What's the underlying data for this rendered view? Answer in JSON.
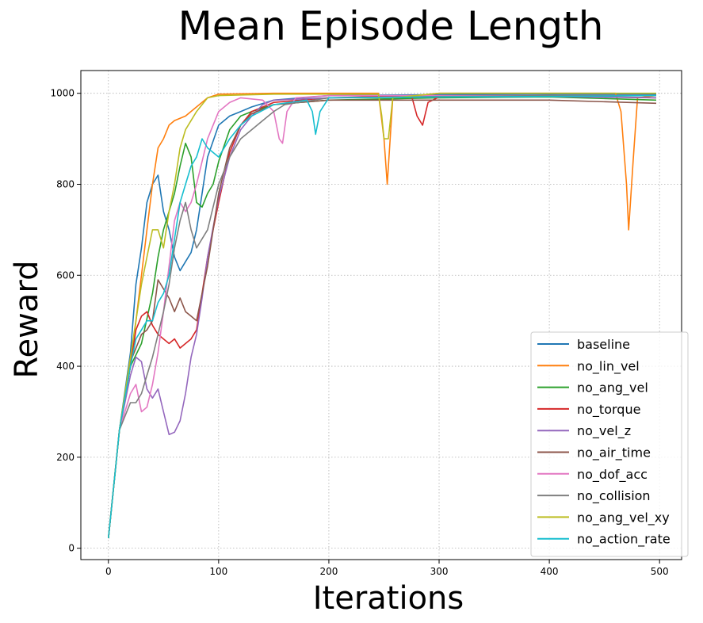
{
  "chart_data": {
    "type": "line",
    "title": "Mean Episode Length",
    "xlabel": "Iterations",
    "ylabel": "Reward",
    "xlim": [
      -25,
      520
    ],
    "ylim": [
      -25,
      1050
    ],
    "xticks": [
      0,
      100,
      200,
      300,
      400,
      500
    ],
    "yticks": [
      0,
      200,
      400,
      600,
      800,
      1000
    ],
    "grid": true,
    "grid_style": "dotted",
    "legend_position": "lower-right",
    "series": [
      {
        "name": "baseline",
        "color": "#1f77b4",
        "points": [
          [
            0,
            22
          ],
          [
            10,
            260
          ],
          [
            20,
            430
          ],
          [
            25,
            580
          ],
          [
            30,
            660
          ],
          [
            35,
            760
          ],
          [
            40,
            800
          ],
          [
            45,
            820
          ],
          [
            50,
            740
          ],
          [
            55,
            700
          ],
          [
            60,
            640
          ],
          [
            65,
            610
          ],
          [
            70,
            630
          ],
          [
            75,
            650
          ],
          [
            80,
            700
          ],
          [
            85,
            780
          ],
          [
            90,
            860
          ],
          [
            100,
            930
          ],
          [
            110,
            950
          ],
          [
            120,
            960
          ],
          [
            130,
            970
          ],
          [
            150,
            985
          ],
          [
            200,
            995
          ],
          [
            300,
            997
          ],
          [
            400,
            998
          ],
          [
            497,
            998
          ]
        ]
      },
      {
        "name": "no_lin_vel",
        "color": "#ff7f0e",
        "points": [
          [
            0,
            22
          ],
          [
            10,
            260
          ],
          [
            20,
            400
          ],
          [
            30,
            600
          ],
          [
            35,
            700
          ],
          [
            40,
            800
          ],
          [
            45,
            880
          ],
          [
            50,
            900
          ],
          [
            55,
            930
          ],
          [
            60,
            940
          ],
          [
            70,
            950
          ],
          [
            80,
            970
          ],
          [
            90,
            990
          ],
          [
            100,
            998
          ],
          [
            150,
            1000
          ],
          [
            245,
            1000
          ],
          [
            250,
            900
          ],
          [
            253,
            800
          ],
          [
            258,
            990
          ],
          [
            300,
            1000
          ],
          [
            460,
            1000
          ],
          [
            465,
            960
          ],
          [
            470,
            800
          ],
          [
            472,
            700
          ],
          [
            476,
            850
          ],
          [
            480,
            990
          ],
          [
            497,
            995
          ]
        ]
      },
      {
        "name": "no_ang_vel",
        "color": "#2ca02c",
        "points": [
          [
            0,
            22
          ],
          [
            10,
            260
          ],
          [
            20,
            400
          ],
          [
            30,
            450
          ],
          [
            40,
            560
          ],
          [
            45,
            640
          ],
          [
            50,
            700
          ],
          [
            55,
            740
          ],
          [
            60,
            780
          ],
          [
            65,
            840
          ],
          [
            70,
            890
          ],
          [
            75,
            860
          ],
          [
            80,
            760
          ],
          [
            85,
            750
          ],
          [
            90,
            780
          ],
          [
            95,
            800
          ],
          [
            100,
            850
          ],
          [
            110,
            920
          ],
          [
            120,
            950
          ],
          [
            130,
            960
          ],
          [
            150,
            975
          ],
          [
            200,
            985
          ],
          [
            300,
            990
          ],
          [
            400,
            992
          ],
          [
            497,
            985
          ]
        ]
      },
      {
        "name": "no_torque",
        "color": "#d62728",
        "points": [
          [
            0,
            22
          ],
          [
            10,
            260
          ],
          [
            20,
            400
          ],
          [
            25,
            480
          ],
          [
            30,
            510
          ],
          [
            35,
            520
          ],
          [
            40,
            490
          ],
          [
            45,
            470
          ],
          [
            50,
            460
          ],
          [
            55,
            450
          ],
          [
            60,
            460
          ],
          [
            65,
            440
          ],
          [
            70,
            450
          ],
          [
            75,
            460
          ],
          [
            80,
            480
          ],
          [
            85,
            560
          ],
          [
            90,
            640
          ],
          [
            100,
            760
          ],
          [
            110,
            870
          ],
          [
            120,
            930
          ],
          [
            130,
            960
          ],
          [
            150,
            980
          ],
          [
            200,
            990
          ],
          [
            275,
            995
          ],
          [
            280,
            950
          ],
          [
            285,
            930
          ],
          [
            290,
            980
          ],
          [
            300,
            992
          ],
          [
            400,
            995
          ],
          [
            497,
            990
          ]
        ]
      },
      {
        "name": "no_vel_z",
        "color": "#9467bd",
        "points": [
          [
            0,
            22
          ],
          [
            10,
            260
          ],
          [
            20,
            380
          ],
          [
            25,
            420
          ],
          [
            30,
            410
          ],
          [
            35,
            350
          ],
          [
            40,
            330
          ],
          [
            45,
            350
          ],
          [
            50,
            300
          ],
          [
            55,
            250
          ],
          [
            60,
            255
          ],
          [
            65,
            280
          ],
          [
            70,
            340
          ],
          [
            75,
            420
          ],
          [
            80,
            470
          ],
          [
            85,
            550
          ],
          [
            90,
            640
          ],
          [
            100,
            770
          ],
          [
            110,
            860
          ],
          [
            120,
            920
          ],
          [
            130,
            950
          ],
          [
            140,
            975
          ],
          [
            150,
            985
          ],
          [
            200,
            990
          ],
          [
            300,
            992
          ],
          [
            400,
            993
          ],
          [
            497,
            990
          ]
        ]
      },
      {
        "name": "no_air_time",
        "color": "#8c564b",
        "points": [
          [
            0,
            22
          ],
          [
            10,
            260
          ],
          [
            20,
            410
          ],
          [
            30,
            470
          ],
          [
            35,
            480
          ],
          [
            40,
            500
          ],
          [
            45,
            590
          ],
          [
            50,
            570
          ],
          [
            55,
            550
          ],
          [
            60,
            520
          ],
          [
            65,
            550
          ],
          [
            70,
            520
          ],
          [
            75,
            510
          ],
          [
            80,
            500
          ],
          [
            90,
            620
          ],
          [
            100,
            780
          ],
          [
            110,
            880
          ],
          [
            120,
            930
          ],
          [
            130,
            955
          ],
          [
            150,
            975
          ],
          [
            200,
            985
          ],
          [
            300,
            985
          ],
          [
            400,
            985
          ],
          [
            497,
            978
          ]
        ]
      },
      {
        "name": "no_dof_acc",
        "color": "#e377c2",
        "points": [
          [
            0,
            22
          ],
          [
            10,
            260
          ],
          [
            20,
            340
          ],
          [
            25,
            360
          ],
          [
            30,
            300
          ],
          [
            35,
            310
          ],
          [
            40,
            360
          ],
          [
            45,
            430
          ],
          [
            50,
            520
          ],
          [
            55,
            620
          ],
          [
            60,
            720
          ],
          [
            65,
            760
          ],
          [
            70,
            740
          ],
          [
            75,
            760
          ],
          [
            80,
            800
          ],
          [
            90,
            900
          ],
          [
            100,
            960
          ],
          [
            110,
            980
          ],
          [
            120,
            990
          ],
          [
            140,
            985
          ],
          [
            150,
            960
          ],
          [
            155,
            900
          ],
          [
            158,
            890
          ],
          [
            162,
            960
          ],
          [
            170,
            990
          ],
          [
            200,
            995
          ],
          [
            300,
            995
          ],
          [
            400,
            995
          ],
          [
            497,
            995
          ]
        ]
      },
      {
        "name": "no_collision",
        "color": "#7f7f7f",
        "points": [
          [
            0,
            22
          ],
          [
            10,
            260
          ],
          [
            20,
            320
          ],
          [
            25,
            320
          ],
          [
            30,
            340
          ],
          [
            35,
            380
          ],
          [
            40,
            420
          ],
          [
            45,
            470
          ],
          [
            50,
            520
          ],
          [
            55,
            580
          ],
          [
            60,
            660
          ],
          [
            65,
            720
          ],
          [
            70,
            760
          ],
          [
            75,
            700
          ],
          [
            80,
            660
          ],
          [
            90,
            700
          ],
          [
            100,
            800
          ],
          [
            110,
            860
          ],
          [
            120,
            900
          ],
          [
            130,
            920
          ],
          [
            140,
            940
          ],
          [
            150,
            960
          ],
          [
            160,
            975
          ],
          [
            200,
            990
          ],
          [
            300,
            993
          ],
          [
            400,
            995
          ],
          [
            497,
            995
          ]
        ]
      },
      {
        "name": "no_ang_vel_xy",
        "color": "#bcbd22",
        "points": [
          [
            0,
            22
          ],
          [
            10,
            260
          ],
          [
            20,
            420
          ],
          [
            25,
            500
          ],
          [
            30,
            580
          ],
          [
            35,
            640
          ],
          [
            40,
            700
          ],
          [
            45,
            700
          ],
          [
            50,
            660
          ],
          [
            55,
            740
          ],
          [
            60,
            800
          ],
          [
            65,
            880
          ],
          [
            70,
            920
          ],
          [
            80,
            960
          ],
          [
            90,
            990
          ],
          [
            100,
            995
          ],
          [
            150,
            998
          ],
          [
            245,
            998
          ],
          [
            248,
            950
          ],
          [
            250,
            900
          ],
          [
            254,
            900
          ],
          [
            258,
            990
          ],
          [
            300,
            1000
          ],
          [
            400,
            1000
          ],
          [
            497,
            1000
          ]
        ]
      },
      {
        "name": "no_action_rate",
        "color": "#17becf",
        "points": [
          [
            0,
            22
          ],
          [
            10,
            260
          ],
          [
            20,
            400
          ],
          [
            25,
            460
          ],
          [
            30,
            480
          ],
          [
            35,
            500
          ],
          [
            40,
            500
          ],
          [
            45,
            540
          ],
          [
            50,
            560
          ],
          [
            55,
            600
          ],
          [
            60,
            680
          ],
          [
            65,
            760
          ],
          [
            70,
            800
          ],
          [
            75,
            840
          ],
          [
            80,
            860
          ],
          [
            85,
            900
          ],
          [
            90,
            880
          ],
          [
            100,
            860
          ],
          [
            110,
            900
          ],
          [
            120,
            930
          ],
          [
            130,
            950
          ],
          [
            150,
            975
          ],
          [
            180,
            985
          ],
          [
            185,
            960
          ],
          [
            188,
            910
          ],
          [
            192,
            960
          ],
          [
            200,
            990
          ],
          [
            300,
            992
          ],
          [
            400,
            993
          ],
          [
            497,
            995
          ]
        ]
      }
    ]
  }
}
